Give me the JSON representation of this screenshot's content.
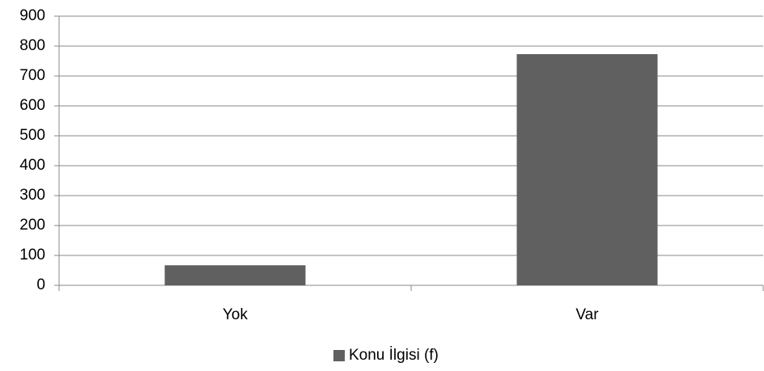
{
  "chart_data": {
    "type": "bar",
    "categories": [
      "Yok",
      "Var"
    ],
    "series": [
      {
        "name": "Konu İlgisi (f)",
        "color": "#606060",
        "values": [
          67,
          773
        ]
      }
    ],
    "ylim": [
      0,
      900
    ],
    "yticks": [
      0,
      100,
      200,
      300,
      400,
      500,
      600,
      700,
      800,
      900
    ],
    "grid": true,
    "legend": "bottom"
  }
}
